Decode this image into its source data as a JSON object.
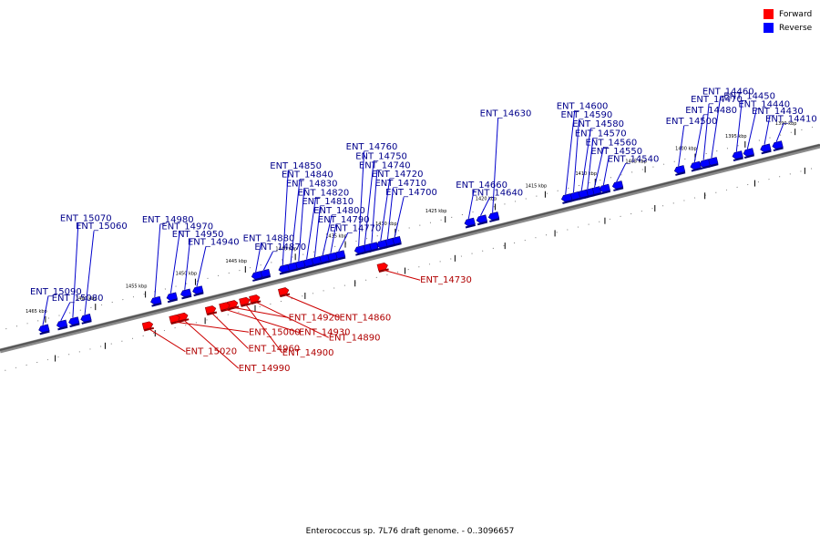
{
  "legend": {
    "forward": "Forward",
    "reverse": "Reverse",
    "forward_color": "#ff0000",
    "reverse_color": "#0000ff"
  },
  "caption": "Enterococcus sp. 7L76 draft genome. - 0..3096657",
  "ruler": {
    "ticks": [
      {
        "kbp": 1390,
        "label": "1390 kbp"
      },
      {
        "kbp": 1395,
        "label": "1395 kbp"
      },
      {
        "kbp": 1400,
        "label": "1400 kbp"
      },
      {
        "kbp": 1405,
        "label": "1405 kbp"
      },
      {
        "kbp": 1410,
        "label": "1410 kbp"
      },
      {
        "kbp": 1415,
        "label": "1415 kbp"
      },
      {
        "kbp": 1420,
        "label": "1420 kbp"
      },
      {
        "kbp": 1425,
        "label": "1425 kbp"
      },
      {
        "kbp": 1430,
        "label": "1430 kbp"
      },
      {
        "kbp": 1435,
        "label": "1435 kbp"
      },
      {
        "kbp": 1440,
        "label": "1440 kbp"
      },
      {
        "kbp": 1445,
        "label": "1445 kbp"
      },
      {
        "kbp": 1450,
        "label": "1450 kbp"
      },
      {
        "kbp": 1455,
        "label": "1455 kbp"
      },
      {
        "kbp": 1460,
        "label": "1460 kbp"
      },
      {
        "kbp": 1465,
        "label": "1465 kbp"
      }
    ]
  },
  "reverse_genes": [
    {
      "name": "ENT_14410",
      "kbp": 1392.0
    },
    {
      "name": "ENT_14430",
      "kbp": 1393.2
    },
    {
      "name": "ENT_14440",
      "kbp": 1394.9
    },
    {
      "name": "ENT_14450",
      "kbp": 1396.0
    },
    {
      "name": "ENT_14460",
      "kbp": 1398.5
    },
    {
      "name": "ENT_14470",
      "kbp": 1399.3
    },
    {
      "name": "ENT_14480",
      "kbp": 1400.2
    },
    {
      "name": "ENT_14500",
      "kbp": 1401.8
    },
    {
      "name": "ENT_14540",
      "kbp": 1408.0
    },
    {
      "name": "ENT_14550",
      "kbp": 1409.3
    },
    {
      "name": "ENT_14560",
      "kbp": 1410.2
    },
    {
      "name": "ENT_14570",
      "kbp": 1410.9
    },
    {
      "name": "ENT_14580",
      "kbp": 1411.5
    },
    {
      "name": "ENT_14590",
      "kbp": 1412.3
    },
    {
      "name": "ENT_14600",
      "kbp": 1413.1
    },
    {
      "name": "ENT_14630",
      "kbp": 1420.4
    },
    {
      "name": "ENT_14640",
      "kbp": 1421.6
    },
    {
      "name": "ENT_14660",
      "kbp": 1422.8
    },
    {
      "name": "ENT_14700",
      "kbp": 1430.2
    },
    {
      "name": "ENT_14710",
      "kbp": 1430.9
    },
    {
      "name": "ENT_14720",
      "kbp": 1431.6
    },
    {
      "name": "ENT_14740",
      "kbp": 1432.5
    },
    {
      "name": "ENT_14750",
      "kbp": 1433.2
    },
    {
      "name": "ENT_14760",
      "kbp": 1433.8
    },
    {
      "name": "ENT_14770",
      "kbp": 1435.8
    },
    {
      "name": "ENT_14790",
      "kbp": 1436.6
    },
    {
      "name": "ENT_14800",
      "kbp": 1437.4
    },
    {
      "name": "ENT_14810",
      "kbp": 1438.2
    },
    {
      "name": "ENT_14820",
      "kbp": 1439.0
    },
    {
      "name": "ENT_14830",
      "kbp": 1439.8
    },
    {
      "name": "ENT_14840",
      "kbp": 1440.6
    },
    {
      "name": "ENT_14850",
      "kbp": 1441.4
    },
    {
      "name": "ENT_14870",
      "kbp": 1443.3
    },
    {
      "name": "ENT_14880",
      "kbp": 1444.1
    },
    {
      "name": "ENT_14940",
      "kbp": 1450.0
    },
    {
      "name": "ENT_14950",
      "kbp": 1451.2
    },
    {
      "name": "ENT_14970",
      "kbp": 1452.6
    },
    {
      "name": "ENT_14980",
      "kbp": 1454.2
    },
    {
      "name": "ENT_15060",
      "kbp": 1461.2
    },
    {
      "name": "ENT_15070",
      "kbp": 1462.4
    },
    {
      "name": "ENT_15080",
      "kbp": 1463.6
    },
    {
      "name": "ENT_15090",
      "kbp": 1465.4
    }
  ],
  "forward_genes": [
    {
      "name": "ENT_14730",
      "kbp": 1432.0
    },
    {
      "name": "ENT_14860",
      "kbp": 1441.9
    },
    {
      "name": "ENT_14890",
      "kbp": 1444.8
    },
    {
      "name": "ENT_14900",
      "kbp": 1445.8
    },
    {
      "name": "ENT_14920",
      "kbp": 1447.0
    },
    {
      "name": "ENT_14930",
      "kbp": 1447.8
    },
    {
      "name": "ENT_14960",
      "kbp": 1449.2
    },
    {
      "name": "ENT_14990",
      "kbp": 1452.0
    },
    {
      "name": "ENT_15000",
      "kbp": 1452.8
    },
    {
      "name": "ENT_15020",
      "kbp": 1455.5
    }
  ]
}
